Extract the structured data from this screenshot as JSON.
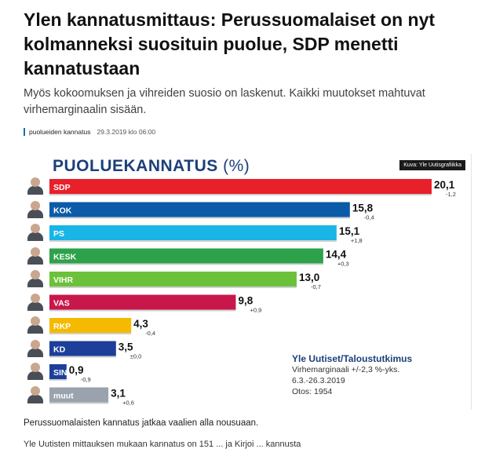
{
  "article": {
    "headline": "Ylen kannatusmittaus: Perussuomalaiset on nyt kolmanneksi suosituin puolue, SDP menetti kannatustaan",
    "lead": "Myös kokoomuksen ja vihreiden suosio on laskenut. Kaikki muutokset mahtuvat virhemarginaalin sisään.",
    "tag": "puolueiden kannatus",
    "timestamp": "29.3.2019 klo 06:00",
    "caption": "Perussuomalaisten kannatus jatkaa vaalien alla nousuaan.",
    "next_line": "Yle Uutisten mittauksen mukaan kannatus on 151 ... ja Kirjoi ... kannusta"
  },
  "figure": {
    "credit": "Kuva: Yle Uutisgrafiikka",
    "source_title": "Yle Uutiset/Taloustutkimus",
    "source_lines": [
      "Virhemarginaali +/-2,3 %-yks.",
      "6.3.-26.3.2019",
      "Otos: 1954"
    ]
  },
  "chart_data": {
    "type": "bar",
    "orientation": "horizontal",
    "title": "PUOLUEKANNATUS",
    "title_unit": "(%)",
    "categories": [
      "SDP",
      "KOK",
      "PS",
      "KESK",
      "VIHR",
      "VAS",
      "RKP",
      "KD",
      "SIN",
      "muut"
    ],
    "values": [
      20.1,
      15.8,
      15.1,
      14.4,
      13.0,
      9.8,
      4.3,
      3.5,
      0.9,
      3.1
    ],
    "value_labels": [
      "20,1",
      "15,8",
      "15,1",
      "14,4",
      "13,0",
      "9,8",
      "4,3",
      "3,5",
      "0,9",
      "3,1"
    ],
    "changes": [
      "-1,2",
      "-0,4",
      "+1,8",
      "+0,3",
      "-0,7",
      "+0,9",
      "-0,4",
      "±0,0",
      "-0,9",
      "+0,6"
    ],
    "colors": [
      "#e8202a",
      "#0b5ba8",
      "#18b5e6",
      "#2ea24a",
      "#6cc13a",
      "#c8174a",
      "#f5b900",
      "#1d3f9a",
      "#1d3f9a",
      "#9aa3ad"
    ],
    "xlim": [
      0,
      20.1
    ]
  }
}
